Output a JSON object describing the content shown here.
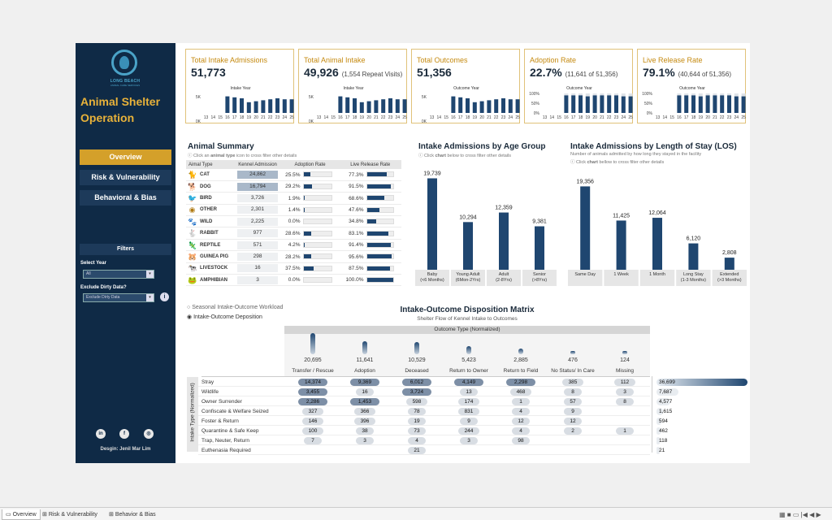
{
  "sidebar": {
    "logo_text": "LONG BEACH",
    "logo_sub": "ANIMAL CARE SERVICES",
    "title_line1": "Animal Shelter",
    "title_line2": "Operation",
    "nav": [
      "Overview",
      "Risk & Vulnerability",
      "Behavioral & Bias"
    ],
    "filters_title": "Filters",
    "select_year_label": "Select Year",
    "select_year_value": "All",
    "exclude_label": "Exclude Dirty Data?",
    "exclude_value": "Exclude Dirty Data",
    "social": [
      "in",
      "f",
      "◎"
    ],
    "designer": "Desgin: Jenil Mar Lim"
  },
  "kpis": [
    {
      "title": "Total Intake Admissions",
      "value": "51,773",
      "extra": "",
      "sub": "Intake Year",
      "kind": "count"
    },
    {
      "title": "Total Animal Intake",
      "value": "49,926",
      "extra": "(1,554 Repeat Visits)",
      "sub": "Intake Year",
      "kind": "count"
    },
    {
      "title": "Total Outcomes",
      "value": "51,356",
      "extra": "",
      "sub": "Outcome Year",
      "kind": "count"
    },
    {
      "title": "Adoption Rate",
      "value": "22.7%",
      "extra": "(11,641 of 51,356)",
      "sub": "Outcome Year",
      "kind": "pct"
    },
    {
      "title": "Live Release Rate",
      "value": "79.1%",
      "extra": "(40,644 of 51,356)",
      "sub": "Outcome Year",
      "kind": "pct"
    }
  ],
  "spark": {
    "years": [
      "13",
      "14",
      "15",
      "16",
      "17",
      "18",
      "19",
      "20",
      "21",
      "22",
      "23",
      "24",
      "25"
    ],
    "count_axis": [
      "5K",
      "0K"
    ],
    "pct_axis": [
      "100%",
      "50%",
      "0%"
    ],
    "count_values": [
      0,
      0,
      0,
      0.85,
      0.8,
      0.75,
      0.55,
      0.6,
      0.65,
      0.7,
      0.75,
      0.7,
      0.7
    ],
    "pct_values": [
      0,
      0,
      0,
      0.9,
      0.9,
      0.9,
      0.85,
      0.9,
      0.9,
      0.9,
      0.9,
      0.85,
      0.85
    ]
  },
  "animal_summary": {
    "title": "Animal Summary",
    "hint_pre": "Click an ",
    "hint_bold": "animal type",
    "hint_post": " icon to cross filter other details",
    "columns": [
      "Aimal Type",
      "Kennel Admission",
      "Adoption Rate",
      "Live Release Rate"
    ],
    "rows": [
      {
        "icon": "🐈",
        "name": "CAT",
        "kennel": "24,862",
        "kennel_frac": 1.0,
        "adopt": "25.5%",
        "adopt_frac": 0.255,
        "live": "77.3%",
        "live_frac": 0.773
      },
      {
        "icon": "🐕",
        "name": "DOG",
        "kennel": "16,794",
        "kennel_frac": 0.68,
        "adopt": "29.2%",
        "adopt_frac": 0.292,
        "live": "91.5%",
        "live_frac": 0.915
      },
      {
        "icon": "🐦",
        "name": "BIRD",
        "kennel": "3,726",
        "kennel_frac": 0.15,
        "adopt": "1.9%",
        "adopt_frac": 0.019,
        "live": "68.6%",
        "live_frac": 0.686
      },
      {
        "icon": "◉",
        "name": "OTHER",
        "kennel": "2,301",
        "kennel_frac": 0.09,
        "adopt": "1.4%",
        "adopt_frac": 0.014,
        "live": "47.6%",
        "live_frac": 0.476
      },
      {
        "icon": "🐾",
        "name": "WILD",
        "kennel": "2,225",
        "kennel_frac": 0.09,
        "adopt": "0.0%",
        "adopt_frac": 0.0,
        "live": "34.8%",
        "live_frac": 0.348
      },
      {
        "icon": "🐇",
        "name": "RABBIT",
        "kennel": "977",
        "kennel_frac": 0.04,
        "adopt": "28.6%",
        "adopt_frac": 0.286,
        "live": "83.1%",
        "live_frac": 0.831
      },
      {
        "icon": "🦎",
        "name": "REPTILE",
        "kennel": "571",
        "kennel_frac": 0.02,
        "adopt": "4.2%",
        "adopt_frac": 0.042,
        "live": "91.4%",
        "live_frac": 0.914
      },
      {
        "icon": "🐹",
        "name": "GUINEA PIG",
        "kennel": "298",
        "kennel_frac": 0.01,
        "adopt": "28.2%",
        "adopt_frac": 0.282,
        "live": "95.6%",
        "live_frac": 0.956
      },
      {
        "icon": "🐄",
        "name": "LIVESTOCK",
        "kennel": "16",
        "kennel_frac": 0.0,
        "adopt": "37.5%",
        "adopt_frac": 0.375,
        "live": "87.5%",
        "live_frac": 0.875
      },
      {
        "icon": "🐸",
        "name": "AMPHIBIAN",
        "kennel": "3",
        "kennel_frac": 0.0,
        "adopt": "0.0%",
        "adopt_frac": 0.0,
        "live": "100.0%",
        "live_frac": 1.0
      }
    ]
  },
  "age_chart": {
    "title": "Intake Admissions by Age Group",
    "hint_pre": "Click ",
    "hint_bold": "chart",
    "hint_post": " below to cross filter other details"
  },
  "los_chart": {
    "title": "Intake Admissions by Length of Stay (LOS)",
    "subtitle": "Number of animals admitted by how long they stayed in the facility",
    "hint_pre": "Click ",
    "hint_bold": "chart",
    "hint_post": " bellow to cross filter other details"
  },
  "chart_data": [
    {
      "type": "bar",
      "title": "Intake Admissions by Age Group",
      "categories": [
        [
          "Baby",
          "(<6 Months)"
        ],
        [
          "Young Adult",
          "(6Mon-2Yrs)"
        ],
        [
          "Adult",
          "(2-8Yrs)"
        ],
        [
          "Senior",
          "(>8Yrs)"
        ]
      ],
      "values": [
        19739,
        10294,
        12359,
        9381
      ],
      "labels": [
        "19,739",
        "10,294",
        "12,359",
        "9,381"
      ],
      "ylim": [
        0,
        20000
      ]
    },
    {
      "type": "bar",
      "title": "Intake Admissions by Length of Stay (LOS)",
      "categories": [
        [
          "Same Day"
        ],
        [
          "1 Week"
        ],
        [
          "1 Month"
        ],
        [
          "Long Stay",
          "(1-3 Months)"
        ],
        [
          "Extended",
          "(>3 Months)"
        ]
      ],
      "values": [
        19356,
        11425,
        12064,
        6120,
        2808
      ],
      "labels": [
        "19,356",
        "11,425",
        "12,064",
        "6,120",
        "2,808"
      ],
      "ylim": [
        0,
        20000
      ]
    }
  ],
  "matrix": {
    "radio_options": [
      "Seasonal Intake-Outcome Workload",
      "Intake-Outcome Deposition"
    ],
    "title": "Intake-Outcome Disposition Matrix",
    "subtitle": "Shelter Flow of Kennel Intake to Outcomes",
    "outcome_header": "Outcome Type (Normalized)",
    "intake_axis": "Intake Type (Normalized)",
    "outcomes": [
      "Transfer / Rescue",
      "Adoption",
      "Deceased",
      "Return to Owner",
      "Return to Field",
      "No Status/ In Care",
      "Missing"
    ],
    "outcome_totals": [
      "20,695",
      "11,641",
      "10,529",
      "5,423",
      "2,885",
      "476",
      "124"
    ],
    "outcome_fracs": [
      1.0,
      0.56,
      0.51,
      0.26,
      0.14,
      0.02,
      0.01
    ],
    "rows": [
      {
        "label": "Stray",
        "cells": [
          "14,374",
          "9,369",
          "6,012",
          "4,149",
          "2,298",
          "385",
          "112"
        ],
        "total": "36,699",
        "total_frac": 1.0
      },
      {
        "label": "Wildlife",
        "cells": [
          "3,455",
          "16",
          "3,724",
          "13",
          "468",
          "8",
          "3"
        ],
        "total": "7,687",
        "total_frac": 0.21
      },
      {
        "label": "Owner Surrender",
        "cells": [
          "2,286",
          "1,453",
          "598",
          "174",
          "1",
          "57",
          "8"
        ],
        "total": "4,577",
        "total_frac": 0.12
      },
      {
        "label": "Confiscate & Welfare Seized",
        "cells": [
          "327",
          "366",
          "78",
          "831",
          "4",
          "9",
          ""
        ],
        "total": "1,615",
        "total_frac": 0.04
      },
      {
        "label": "Foster & Return",
        "cells": [
          "146",
          "396",
          "19",
          "9",
          "12",
          "12",
          ""
        ],
        "total": "594",
        "total_frac": 0.02
      },
      {
        "label": "Quarantine & Safe Keep",
        "cells": [
          "100",
          "38",
          "73",
          "244",
          "4",
          "2",
          "1"
        ],
        "total": "462",
        "total_frac": 0.01
      },
      {
        "label": "Trap, Neuter, Return",
        "cells": [
          "7",
          "3",
          "4",
          "3",
          "98",
          "",
          ""
        ],
        "total": "118",
        "total_frac": 0.0
      },
      {
        "label": "Euthenasia Required",
        "cells": [
          "",
          "",
          "21",
          "",
          "",
          "",
          ""
        ],
        "total": "21",
        "total_frac": 0.0
      }
    ]
  },
  "tabs": [
    "Overview",
    "Risk & Vulnerability",
    "Behavior & Bias"
  ],
  "colors": {
    "navy": "#0f2a46",
    "bar": "#1f4670",
    "gold": "#d4a02a",
    "gold_text": "#c58a10"
  }
}
